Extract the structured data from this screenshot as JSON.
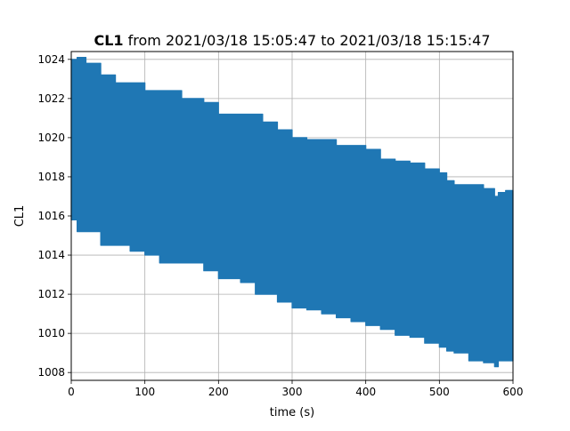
{
  "chart_data": {
    "type": "line",
    "title_bold": "CL1",
    "title_rest": " from 2021/03/18 15:05:47 to 2021/03/18 15:15:47",
    "xlabel": "time (s)",
    "ylabel": "CL1",
    "xlim": [
      0,
      600
    ],
    "ylim": [
      1007.6,
      1024.4
    ],
    "x_ticks": [
      0,
      100,
      200,
      300,
      400,
      500,
      600
    ],
    "y_ticks": [
      1008,
      1010,
      1012,
      1014,
      1016,
      1018,
      1020,
      1022,
      1024
    ],
    "grid": true,
    "series_color": "#1f77b4",
    "series": [
      {
        "x": [
          0,
          8,
          20,
          40,
          60,
          80,
          100,
          120,
          150,
          180,
          200,
          230,
          250,
          260,
          280,
          300,
          320,
          340,
          360,
          380,
          400,
          420,
          440,
          460,
          480,
          500,
          510,
          520,
          540,
          560,
          575,
          580,
          590,
          600
        ],
        "y_max": [
          1024.0,
          1024.1,
          1023.8,
          1023.2,
          1022.8,
          1022.8,
          1022.4,
          1022.4,
          1022.0,
          1021.8,
          1021.2,
          1021.2,
          1021.2,
          1020.8,
          1020.4,
          1020.0,
          1019.9,
          1019.9,
          1019.6,
          1019.6,
          1019.4,
          1018.9,
          1018.8,
          1018.7,
          1018.4,
          1018.2,
          1017.8,
          1017.6,
          1017.6,
          1017.4,
          1017.0,
          1017.2,
          1017.3,
          1017.2
        ],
        "y_min": [
          1016.4,
          1015.8,
          1015.2,
          1015.2,
          1014.5,
          1014.5,
          1014.2,
          1014.0,
          1013.6,
          1013.6,
          1013.2,
          1012.8,
          1012.6,
          1012.0,
          1012.0,
          1011.6,
          1011.3,
          1011.2,
          1011.0,
          1010.8,
          1010.6,
          1010.4,
          1010.2,
          1009.9,
          1009.8,
          1009.5,
          1009.3,
          1009.1,
          1009.0,
          1008.6,
          1008.5,
          1008.3,
          1008.6,
          1008.6
        ]
      }
    ]
  }
}
